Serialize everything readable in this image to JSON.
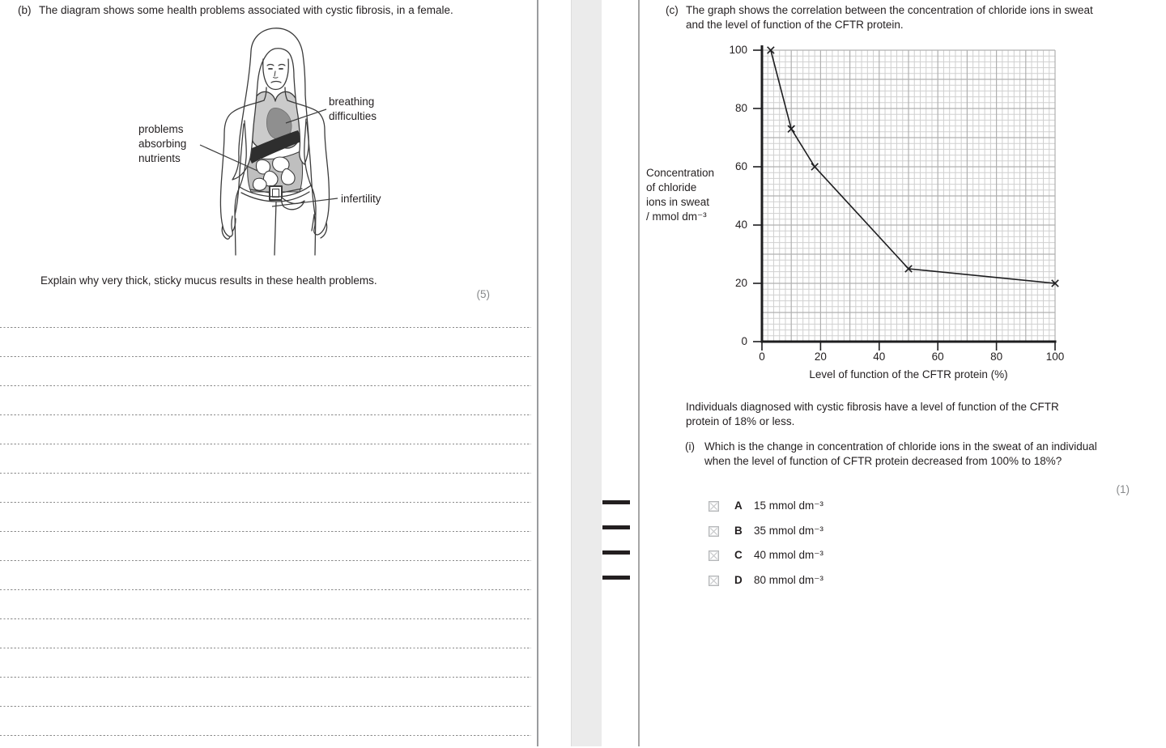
{
  "colors": {
    "text": "#231f20",
    "muted_marks": "#87898b",
    "answer_line": "#8a8a8a",
    "grid_minor": "#d0d0d0",
    "grid_major": "#b0b0b0",
    "curve": "#1d1d1f",
    "spine_band": "#ebebeb",
    "page_edge": "#9a9c9e",
    "organ_light": "#cbcbcb",
    "organ_mid": "#8f8f8f",
    "organ_dark": "#2e2e2e",
    "abdomen": "#bfbfbf"
  },
  "page_left": {
    "question_b": {
      "number": "(b)",
      "text": "The diagram shows some health problems associated with cystic fibrosis, in a female.",
      "labels": {
        "breathing": {
          "lines": [
            "breathing",
            "difficulties"
          ]
        },
        "absorbing": {
          "lines": [
            "problems",
            "absorbing",
            "nutrients"
          ]
        },
        "infertility": {
          "lines": [
            "infertility"
          ]
        }
      },
      "prompt": "Explain why very thick, sticky mucus results in these health problems.",
      "marks": "(5)",
      "answer_line_count": 15
    }
  },
  "page_right": {
    "question_c": {
      "number": "(c)",
      "text": "The graph shows the correlation between the concentration of chloride ions in sweat and the level of function of the CFTR protein.",
      "note": "Individuals diagnosed with cystic fibrosis have a level of function of the CFTR protein of 18% or less.",
      "sub_i": {
        "number": "(i)",
        "text": "Which is the change in concentration of chloride ions in the sweat of an individual when the level of function of CFTR protein decreased from 100% to 18%?",
        "marks": "(1)",
        "options": [
          {
            "letter": "A",
            "text": "15 mmol dm⁻³"
          },
          {
            "letter": "B",
            "text": "35 mmol dm⁻³"
          },
          {
            "letter": "C",
            "text": "40 mmol dm⁻³"
          },
          {
            "letter": "D",
            "text": "80 mmol dm⁻³"
          }
        ]
      }
    }
  },
  "chart_data": {
    "type": "line",
    "x": [
      3,
      10,
      18,
      50,
      100
    ],
    "y": [
      100,
      73,
      60,
      25,
      20
    ],
    "marker": "x",
    "title": "",
    "xlabel": "Level of function of the CFTR protein (%)",
    "ylabel": "Concentration of chloride ions in sweat / mmol dm⁻³",
    "ylabel_lines": [
      "Concentration",
      "of chloride",
      "ions in sweat",
      "/ mmol dm⁻³"
    ],
    "xlim": [
      0,
      100
    ],
    "ylim": [
      0,
      100
    ],
    "xticks": [
      0,
      20,
      40,
      60,
      80,
      100
    ],
    "yticks": [
      0,
      20,
      40,
      60,
      80,
      100
    ],
    "grid": "graph-paper",
    "minor_step": 2,
    "major_step": 10,
    "legend": null
  }
}
